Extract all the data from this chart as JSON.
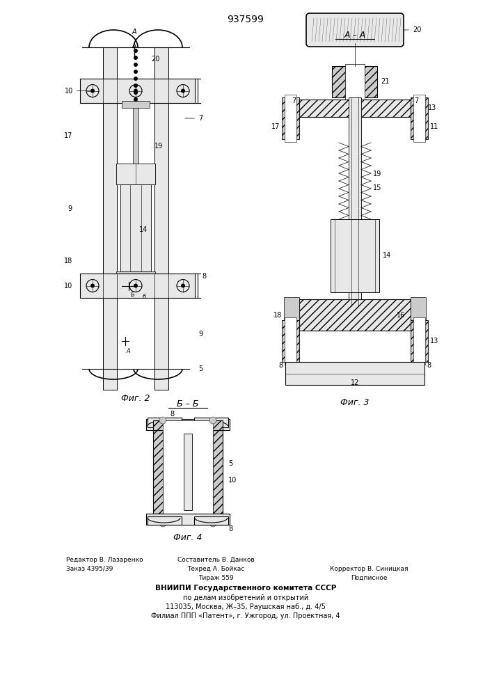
{
  "title": "937599",
  "title_fontsize": 11,
  "background_color": "#ffffff",
  "fig_width": 7.07,
  "fig_height": 10.0,
  "vniipi_line1": "ВНИИПИ Государственного комитета СССР",
  "vniipi_line2": "по делам изобретений и открытий",
  "vniipi_line3": "113035, Москва, Ж–35, Раушская наб., д. 4/5",
  "vniipi_line4": "Филиал ППП «Патент», г. Ужгород, ул. Проектная, 4",
  "fig2_caption": "Фиг. 2",
  "fig3_caption": "Фиг. 3",
  "fig4_caption": "Фиг. 4",
  "section_aa": "А – А",
  "section_bb": "Б – Б"
}
